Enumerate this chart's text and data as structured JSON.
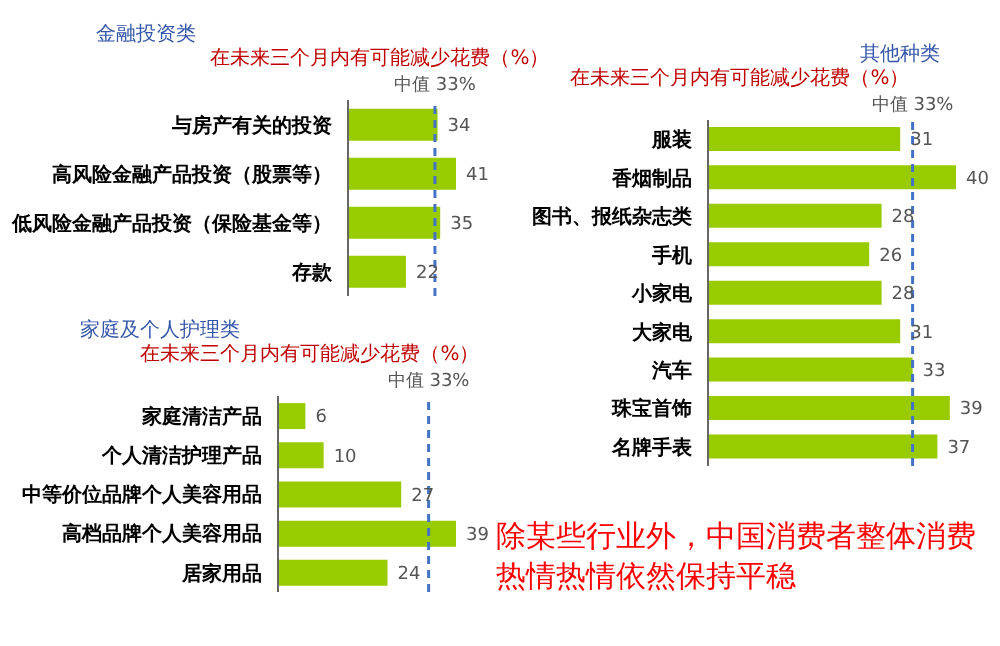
{
  "chart_data": [
    {
      "type": "bar",
      "orientation": "horizontal",
      "title": "金融投资类",
      "subtitle": "在未来三个月内有可能减少花费（%）",
      "categories": [
        "与房产有关的投资",
        "高风险金融产品投资（股票等）",
        "低风险金融产品投资（保险基金等）",
        "存款"
      ],
      "values": [
        34,
        41,
        35,
        22
      ],
      "color": "#99cc00",
      "data_labels": true,
      "tick_labels": "y",
      "ref_lines": [
        {
          "axis": "x",
          "value": 33,
          "label": "中值 33%",
          "color": "#4472c4",
          "line_style": "dashed"
        }
      ]
    },
    {
      "type": "bar",
      "orientation": "horizontal",
      "title": "家庭及个人护理类",
      "subtitle": "在未来三个月内有可能减少花费（%）",
      "categories": [
        "家庭清洁产品",
        "个人清洁护理产品",
        "中等价位品牌个人美容用品",
        "高档品牌个人美容用品",
        "居家用品"
      ],
      "values": [
        6,
        10,
        27,
        39,
        24
      ],
      "color": "#99cc00",
      "data_labels": true,
      "tick_labels": "y",
      "ref_lines": [
        {
          "axis": "x",
          "value": 33,
          "label": "中值 33%",
          "color": "#4472c4",
          "line_style": "dashed"
        }
      ]
    },
    {
      "type": "bar",
      "orientation": "horizontal",
      "title": "其他种类",
      "subtitle": "在未来三个月内有可能减少花费（%）",
      "categories": [
        "服装",
        "香烟制品",
        "图书、报纸杂志类",
        "手机",
        "小家电",
        "大家电",
        "汽车",
        "珠宝首饰",
        "名牌手表"
      ],
      "values": [
        31,
        40,
        28,
        26,
        28,
        31,
        33,
        39,
        37
      ],
      "color": "#99cc00",
      "data_labels": true,
      "tick_labels": "y",
      "ref_lines": [
        {
          "axis": "x",
          "value": 33,
          "label": "中值 33%",
          "color": "#4472c4",
          "line_style": "dashed"
        }
      ],
      "annotations": [
        "除某些行业外，中国消费者整体消费热情热情依然保持平稳"
      ]
    }
  ]
}
